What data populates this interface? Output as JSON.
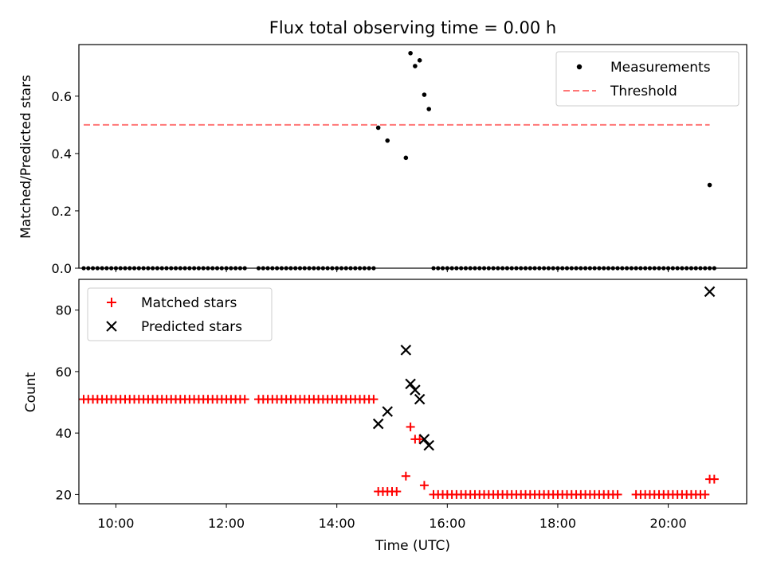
{
  "chart_data": [
    {
      "type": "scatter",
      "title": "Flux total observing time = 0.00 h",
      "xlabel": "",
      "ylabel": "Matched/Predicted stars",
      "ylim": [
        0,
        0.78
      ],
      "yticks": [
        "0.0",
        "0.2",
        "0.4",
        "0.6"
      ],
      "ytick_values": [
        0,
        0.2,
        0.4,
        0.6
      ],
      "xlim_hours": [
        9.33,
        21.42
      ],
      "legend_position": "top-right",
      "legend": [
        "Measurements",
        "Threshold"
      ],
      "threshold": {
        "name": "Threshold",
        "value": 0.5,
        "x_start": "09:25",
        "x_end": "20:45",
        "color": "#ff7777"
      },
      "series": [
        {
          "name": "Measurements",
          "color": "#000000",
          "points": [
            [
              "14:45",
              0.49
            ],
            [
              "14:55",
              0.445
            ],
            [
              "15:15",
              0.385
            ],
            [
              "15:20",
              0.75
            ],
            [
              "15:25",
              0.705
            ],
            [
              "15:30",
              0.725
            ],
            [
              "15:35",
              0.605
            ],
            [
              "15:40",
              0.555
            ],
            [
              "20:45",
              0.29
            ]
          ],
          "zero_segments": [
            [
              "09:25",
              "12:20"
            ],
            [
              "12:35",
              "14:40"
            ],
            [
              "15:45",
              "17:45"
            ],
            [
              "17:50",
              "20:50"
            ]
          ]
        }
      ]
    },
    {
      "type": "scatter",
      "title": "",
      "xlabel": "Time (UTC)",
      "ylabel": "Count",
      "ylim": [
        17,
        90
      ],
      "yticks": [
        "20",
        "40",
        "60",
        "80"
      ],
      "ytick_values": [
        20,
        40,
        60,
        80
      ],
      "xticks": [
        "10:00",
        "12:00",
        "14:00",
        "16:00",
        "18:00",
        "20:00"
      ],
      "xtick_hours": [
        10,
        12,
        14,
        16,
        18,
        20
      ],
      "xlim_hours": [
        9.33,
        21.42
      ],
      "legend_position": "top-left",
      "legend": [
        "Matched stars",
        "Predicted stars"
      ],
      "series": [
        {
          "name": "Matched stars",
          "marker": "+",
          "color": "#ff0000",
          "segments": [
            {
              "from": "09:25",
              "to": "12:20",
              "value": 51
            },
            {
              "from": "12:35",
              "to": "14:40",
              "value": 51
            },
            {
              "from": "14:45",
              "to": "15:05",
              "value": 21
            },
            {
              "from": "15:45",
              "to": "17:45",
              "value": 20
            },
            {
              "from": "17:50",
              "to": "19:05",
              "value": 20
            },
            {
              "from": "19:25",
              "to": "20:40",
              "value": 20
            }
          ],
          "points": [
            [
              "15:15",
              26
            ],
            [
              "15:20",
              42
            ],
            [
              "15:25",
              38
            ],
            [
              "15:30",
              38
            ],
            [
              "15:35",
              23
            ],
            [
              "20:45",
              25
            ],
            [
              "20:50",
              25
            ]
          ]
        },
        {
          "name": "Predicted stars",
          "marker": "x",
          "color": "#000000",
          "points": [
            [
              "14:45",
              43
            ],
            [
              "14:55",
              47
            ],
            [
              "15:15",
              67
            ],
            [
              "15:20",
              56
            ],
            [
              "15:25",
              54
            ],
            [
              "15:30",
              51
            ],
            [
              "15:35",
              38
            ],
            [
              "15:40",
              36
            ],
            [
              "20:45",
              86
            ]
          ]
        }
      ]
    }
  ]
}
